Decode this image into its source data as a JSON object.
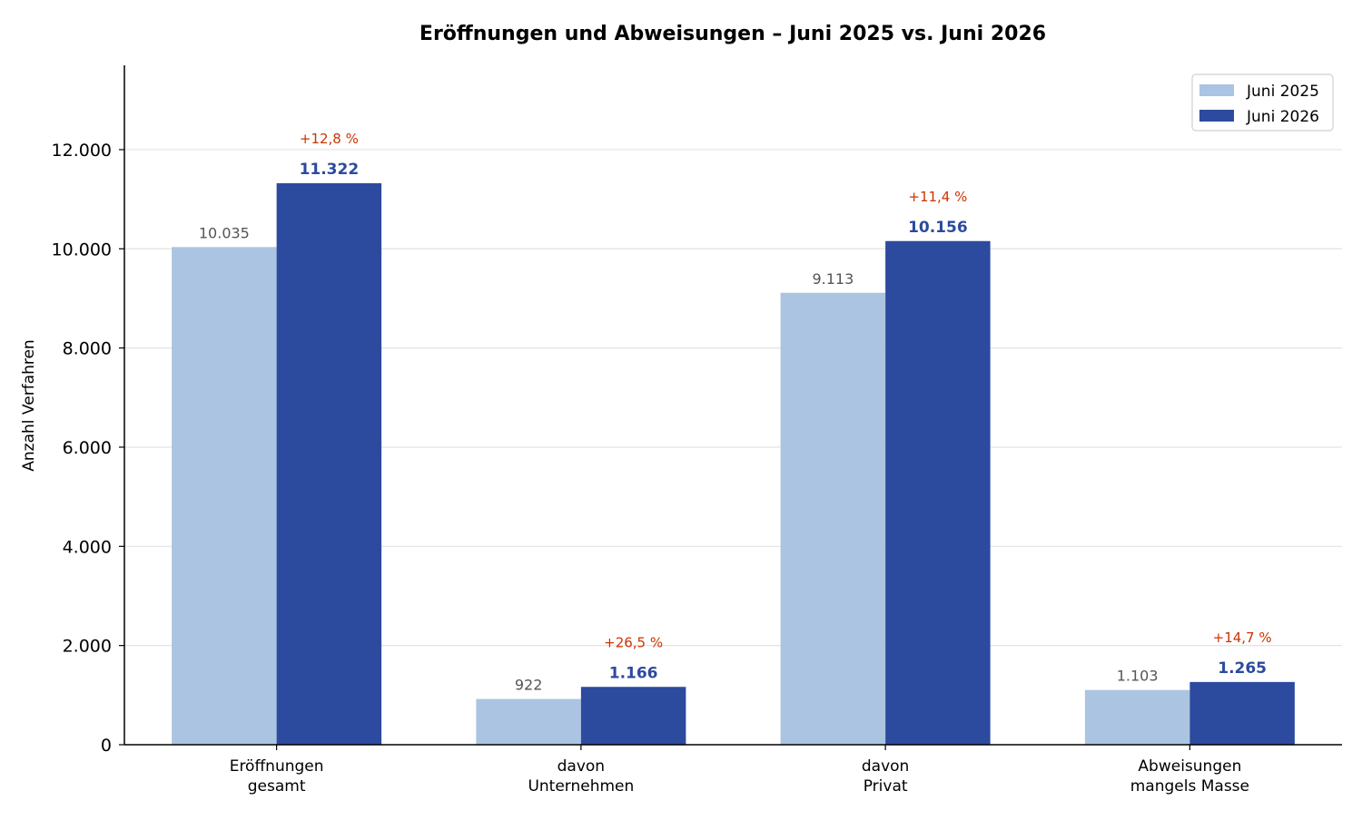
{
  "chart_data": {
    "type": "bar",
    "title": "Eröffnungen und Abweisungen – Juni 2025 vs. Juni 2026",
    "xlabel": "",
    "ylabel": "Anzahl Verfahren",
    "ylim": [
      0,
      13700
    ],
    "yticks": [
      0,
      2000,
      4000,
      6000,
      8000,
      10000,
      12000
    ],
    "ytick_labels": [
      "0",
      "2.000",
      "4.000",
      "6.000",
      "8.000",
      "10.000",
      "12.000"
    ],
    "grid": true,
    "legend_position": "top-right",
    "categories": [
      [
        "Eröffnungen",
        "gesamt"
      ],
      [
        "davon",
        "Unternehmen"
      ],
      [
        "davon",
        "Privat"
      ],
      [
        "Abweisungen",
        "mangels Masse"
      ]
    ],
    "series": [
      {
        "name": "Juni 2025",
        "color": "#aac4e1",
        "label_color": "#555555",
        "values": [
          10035,
          922,
          9113,
          1103
        ],
        "value_labels": [
          "10.035",
          "922",
          "9.113",
          "1.103"
        ]
      },
      {
        "name": "Juni 2026",
        "color": "#2c4a9e",
        "label_color": "#2c4a9e",
        "values": [
          11322,
          1166,
          10156,
          1265
        ],
        "value_labels": [
          "11.322",
          "1.166",
          "10.156",
          "1.265"
        ]
      }
    ],
    "change_labels": [
      "+12,8 %",
      "+26,5 %",
      "+11,4 %",
      "+14,7 %"
    ],
    "change_color": "#cc3300"
  }
}
